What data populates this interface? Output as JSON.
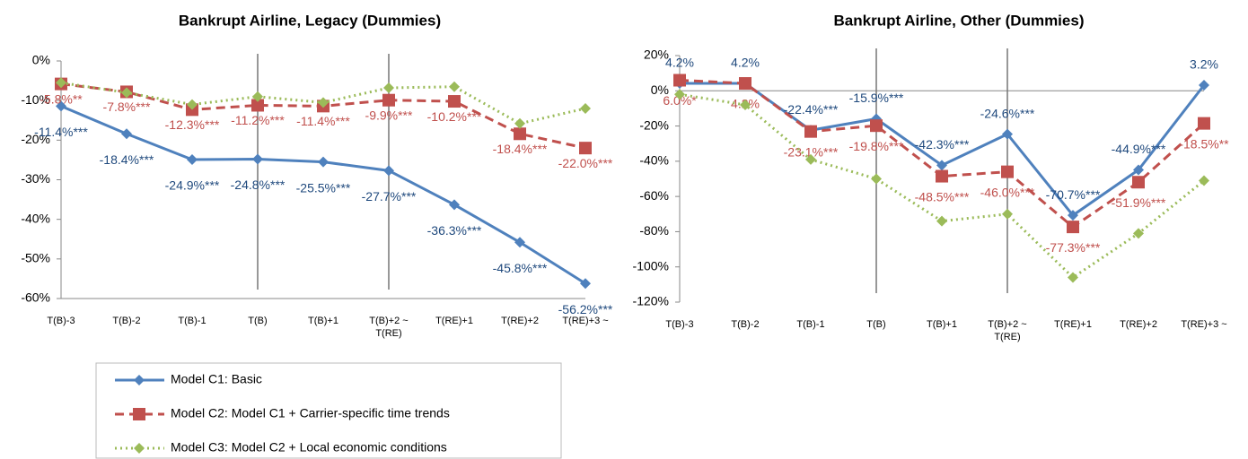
{
  "chart_data": [
    {
      "type": "line",
      "title": "Bankrupt Airline, Legacy (Dummies)",
      "categories": [
        "T(B)-3",
        "T(B)-2",
        "T(B)-1",
        "T(B)",
        "T(B)+1",
        "T(B)+2 ~ T(RE)",
        "T(RE)+1",
        "T(RE)+2",
        "T(RE)+3 ~"
      ],
      "ylim": [
        -60,
        0
      ],
      "yticks": [
        {
          "value": 0,
          "label": "0%"
        },
        {
          "value": -10,
          "label": "-10%"
        },
        {
          "value": -20,
          "label": "-20%"
        },
        {
          "value": -30,
          "label": "-30%"
        },
        {
          "value": -40,
          "label": "-40%"
        },
        {
          "value": -50,
          "label": "-50%"
        },
        {
          "value": -60,
          "label": "-60%"
        }
      ],
      "grid": false,
      "series": [
        {
          "name": "Model C1: Basic",
          "color": "#4f81bd",
          "line_style": "solid",
          "marker": "diamond",
          "values": [
            -11.4,
            -18.4,
            -24.9,
            -24.8,
            -25.5,
            -27.7,
            -36.3,
            -45.8,
            -56.2
          ],
          "value_labels": [
            "-11.4%***",
            "-18.4%***",
            "-24.9%***",
            "-24.8%***",
            "-25.5%***",
            "-27.7%***",
            "-36.3%***",
            "-45.8%***",
            "-56.2%***"
          ]
        },
        {
          "name": "Model C2: Model C1 + Carrier-specific time trends",
          "color": "#c0504d",
          "line_style": "dashed",
          "marker": "square",
          "values": [
            -5.8,
            -7.8,
            -12.3,
            -11.2,
            -11.4,
            -9.9,
            -10.2,
            -18.4,
            -22.0
          ],
          "value_labels": [
            "-5.8%**",
            "-7.8%***",
            "-12.3%***",
            "-11.2%***",
            "-11.4%***",
            "-9.9%***",
            "-10.2%***",
            "-18.4%***",
            "-22.0%***"
          ]
        },
        {
          "name": "Model C3: Model C2 + Local economic conditions",
          "color": "#9bbb59",
          "line_style": "dotted",
          "marker": "diamond",
          "values": [
            -5.5,
            -8,
            -11,
            -9,
            -10.5,
            -6.8,
            -6.5,
            -15.8,
            -12
          ]
        }
      ]
    },
    {
      "type": "line",
      "title": "Bankrupt Airline, Other (Dummies)",
      "categories": [
        "T(B)-3",
        "T(B)-2",
        "T(B)-1",
        "T(B)",
        "T(B)+1",
        "T(B)+2 ~ T(RE)",
        "T(RE)+1",
        "T(RE)+2",
        "T(RE)+3 ~"
      ],
      "ylim": [
        -120,
        20
      ],
      "yticks": [
        {
          "value": 20,
          "label": "20%"
        },
        {
          "value": 0,
          "label": "0%"
        },
        {
          "value": -20,
          "label": "-20%"
        },
        {
          "value": -40,
          "label": "-40%"
        },
        {
          "value": -60,
          "label": "-60%"
        },
        {
          "value": -80,
          "label": "-80%"
        },
        {
          "value": -100,
          "label": "-100%"
        },
        {
          "value": -120,
          "label": "-120%"
        }
      ],
      "grid": false,
      "series": [
        {
          "color": "#4f81bd",
          "line_style": "solid",
          "marker": "diamond",
          "values": [
            4.2,
            4.2,
            -22.4,
            -15.9,
            -42.3,
            -24.6,
            -70.7,
            -44.9,
            3.2
          ],
          "value_labels": [
            "4.2%",
            "4.2%",
            "-22.4%***",
            "-15.9%***",
            "-42.3%***",
            "-24.6%***",
            "-70.7%***",
            "-44.9%***",
            "3.2%"
          ]
        },
        {
          "color": "#c0504d",
          "line_style": "dashed",
          "marker": "square",
          "values": [
            6.0,
            4.2,
            -23.1,
            -19.8,
            -48.5,
            -46.0,
            -77.3,
            -51.9,
            -18.5
          ],
          "value_labels": [
            "6.0%*",
            "4.2%",
            "-23.1%***",
            "-19.8%***",
            "-48.5%***",
            "-46.0%***",
            "-77.3%***",
            "-51.9%***",
            "-18.5%**"
          ]
        },
        {
          "color": "#9bbb59",
          "line_style": "dotted",
          "marker": "diamond",
          "values": [
            -2,
            -8,
            -39,
            -50,
            -74,
            -70,
            -106,
            -81,
            -51
          ]
        }
      ]
    }
  ]
}
